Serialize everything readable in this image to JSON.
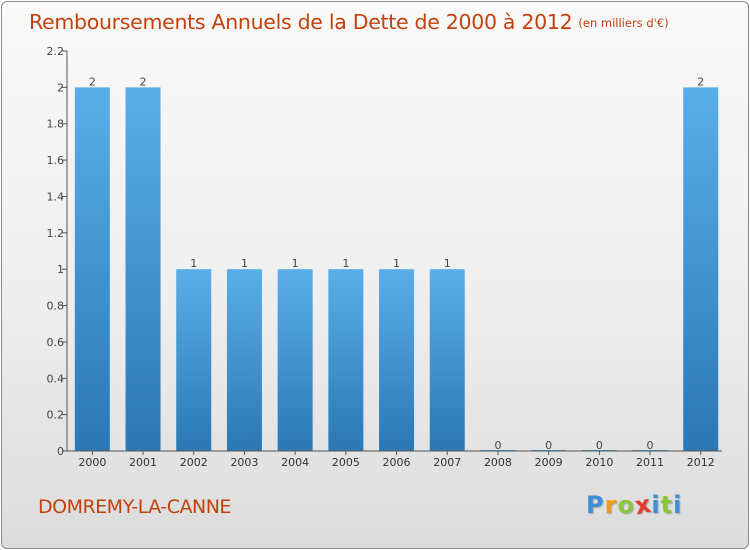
{
  "header": {
    "title": "Remboursements Annuels de la Dette de 2000 à 2012",
    "unit": "(en milliers d'€)"
  },
  "footer": {
    "commune": "DOMREMY-LA-CANNE",
    "logo_letters": [
      "P",
      "r",
      "o",
      "x",
      "i",
      "t",
      "i"
    ],
    "logo_colors": [
      "#3d8fd6",
      "#f29a1b",
      "#8cc63f",
      "#e63b2e",
      "#3d8fd6",
      "#8cc63f",
      "#3d8fd6"
    ]
  },
  "colors": {
    "title": "#c2410c",
    "bar_light": "#5aaee8",
    "bar_dark": "#2a78b4",
    "axis": "#555555"
  },
  "chart_data": {
    "type": "bar",
    "categories": [
      "2000",
      "2001",
      "2002",
      "2003",
      "2004",
      "2005",
      "2006",
      "2007",
      "2008",
      "2009",
      "2010",
      "2011",
      "2012"
    ],
    "values": [
      2,
      2,
      1,
      1,
      1,
      1,
      1,
      1,
      0,
      0,
      0,
      0,
      2
    ],
    "data_labels": [
      "2",
      "2",
      "1",
      "1",
      "1",
      "1",
      "1",
      "1",
      "0",
      "0",
      "0",
      "0",
      "2"
    ],
    "y_ticks": [
      0,
      0.2,
      0.4,
      0.6,
      0.8,
      1,
      1.2,
      1.4,
      1.6,
      1.8,
      2,
      2.2
    ],
    "y_tick_labels": [
      "0",
      "0.2",
      "0.4",
      "0.6",
      "0.8",
      "1",
      "1.2",
      "1.4",
      "1.6",
      "1.8",
      "2",
      "2.2"
    ],
    "ylim": [
      0,
      2.2
    ],
    "grid": false
  }
}
